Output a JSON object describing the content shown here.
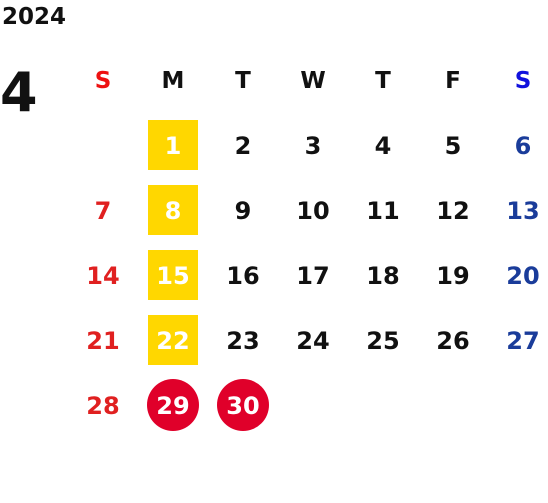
{
  "year": "2024",
  "month": "4",
  "weekdays": [
    "S",
    "M",
    "T",
    "W",
    "T",
    "F",
    "S"
  ],
  "weeks": [
    [
      "",
      "1",
      "2",
      "3",
      "4",
      "5",
      "6"
    ],
    [
      "7",
      "8",
      "9",
      "10",
      "11",
      "12",
      "13"
    ],
    [
      "14",
      "15",
      "16",
      "17",
      "18",
      "19",
      "20"
    ],
    [
      "21",
      "22",
      "23",
      "24",
      "25",
      "26",
      "27"
    ],
    [
      "28",
      "29",
      "30",
      "",
      "",
      "",
      ""
    ]
  ],
  "colors": {
    "sunday": "#e02020",
    "saturday": "#1a3c9a",
    "highlight_yellow": "#ffd700",
    "holiday_red": "#e0002a"
  }
}
